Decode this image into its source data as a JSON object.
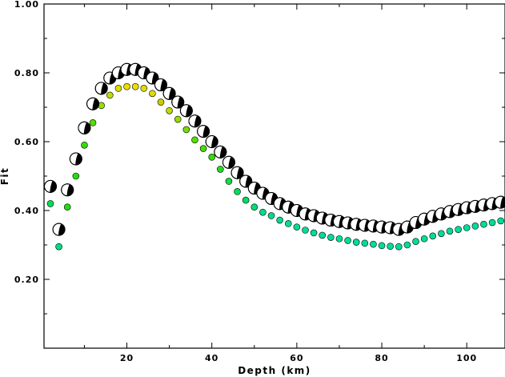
{
  "chart_data": {
    "type": "scatter",
    "xlabel": "Depth (km)",
    "ylabel": "Fit",
    "xlim": [
      0.5,
      109
    ],
    "ylim": [
      0.0,
      1.0
    ],
    "x_ticks": [
      20,
      40,
      60,
      80,
      100
    ],
    "y_ticks": [
      0.2,
      0.4,
      0.6,
      0.8,
      1.0
    ],
    "x_tick_labels": [
      "20",
      "40",
      "60",
      "80",
      "100"
    ],
    "y_tick_labels": [
      "0.20",
      "0.40",
      "0.60",
      "0.80",
      "1.00"
    ],
    "grid": false,
    "legend": "none",
    "series": [
      {
        "marker": "beachball",
        "color": "#000000",
        "x": [
          2,
          4,
          6,
          8,
          10,
          12,
          14,
          16,
          18,
          20,
          22,
          24,
          26,
          28,
          30,
          32,
          34,
          36,
          38,
          40,
          42,
          44,
          46,
          48,
          50,
          52,
          54,
          56,
          58,
          60,
          62,
          64,
          66,
          68,
          70,
          72,
          74,
          76,
          78,
          80,
          82,
          84,
          86,
          88,
          90,
          92,
          94,
          96,
          98,
          100,
          102,
          104,
          106,
          108
        ],
        "y": [
          0.47,
          0.345,
          0.46,
          0.55,
          0.64,
          0.71,
          0.755,
          0.785,
          0.8,
          0.81,
          0.81,
          0.8,
          0.785,
          0.765,
          0.74,
          0.715,
          0.69,
          0.66,
          0.63,
          0.6,
          0.57,
          0.54,
          0.51,
          0.485,
          0.465,
          0.45,
          0.435,
          0.42,
          0.41,
          0.4,
          0.39,
          0.385,
          0.378,
          0.372,
          0.368,
          0.364,
          0.36,
          0.357,
          0.355,
          0.352,
          0.35,
          0.345,
          0.352,
          0.365,
          0.375,
          0.383,
          0.39,
          0.397,
          0.403,
          0.408,
          0.412,
          0.416,
          0.42,
          0.424
        ]
      },
      {
        "marker": "dot",
        "x": [
          2,
          4,
          6,
          8,
          10,
          12,
          14,
          16,
          18,
          20,
          22,
          24,
          26,
          28,
          30,
          32,
          34,
          36,
          38,
          40,
          42,
          44,
          46,
          48,
          50,
          52,
          54,
          56,
          58,
          60,
          62,
          64,
          66,
          68,
          70,
          72,
          74,
          76,
          78,
          80,
          82,
          84,
          86,
          88,
          90,
          92,
          94,
          96,
          98,
          100,
          102,
          104,
          106,
          108
        ],
        "y": [
          0.42,
          0.295,
          0.41,
          0.5,
          0.59,
          0.655,
          0.705,
          0.735,
          0.755,
          0.76,
          0.76,
          0.755,
          0.74,
          0.715,
          0.69,
          0.665,
          0.635,
          0.605,
          0.58,
          0.555,
          0.52,
          0.485,
          0.455,
          0.43,
          0.41,
          0.395,
          0.385,
          0.372,
          0.362,
          0.352,
          0.343,
          0.335,
          0.328,
          0.322,
          0.318,
          0.313,
          0.308,
          0.305,
          0.302,
          0.298,
          0.296,
          0.295,
          0.3,
          0.31,
          0.318,
          0.326,
          0.333,
          0.34,
          0.345,
          0.35,
          0.355,
          0.36,
          0.365,
          0.37
        ],
        "colors": [
          "#00dd55",
          "#00dd88",
          "#22dd11",
          "#22dd11",
          "#33dd00",
          "#55dd00",
          "#99dd00",
          "#bbdd00",
          "#dddd00",
          "#eedd00",
          "#eedd00",
          "#dddd00",
          "#dddd00",
          "#cccc00",
          "#bbdd00",
          "#99dd00",
          "#77dd00",
          "#55dd00",
          "#44dd00",
          "#33dd00",
          "#22dd22",
          "#11dd44",
          "#00dd55",
          "#00dd66",
          "#00dd77",
          "#00dd88",
          "#00dd88",
          "#00dd99",
          "#00dd99",
          "#00dd99",
          "#00dd99",
          "#00dd99",
          "#00dd99",
          "#00dd99",
          "#00dd99",
          "#00dd99",
          "#00dd99",
          "#00dd99",
          "#00dd99",
          "#00dd99",
          "#00dd99",
          "#00dd99",
          "#00dd99",
          "#00dd99",
          "#00dd99",
          "#00dd99",
          "#00dd99",
          "#00dd99",
          "#00dd99",
          "#00dd99",
          "#00dd99",
          "#00dd99",
          "#00dd99",
          "#00dd99"
        ]
      }
    ]
  }
}
